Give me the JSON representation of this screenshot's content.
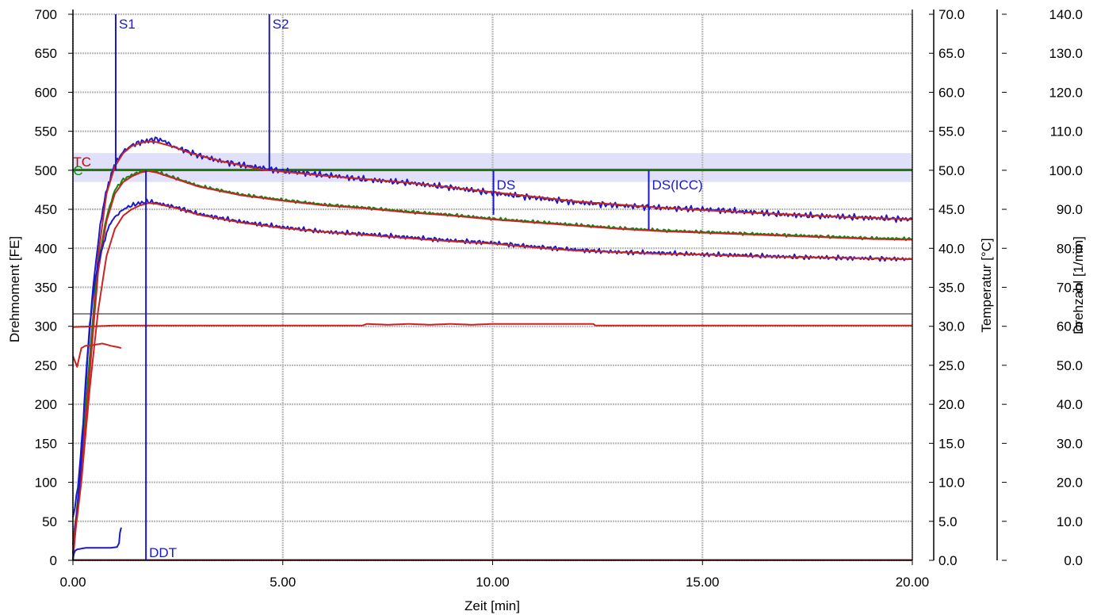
{
  "chart_data": {
    "type": "line",
    "title": "",
    "xlabel": "Zeit [min]",
    "ylabel": "Drehmoment [FE]",
    "y2label": "Temperatur [°C]",
    "y3label": "Drehzahl [1/min]",
    "xlim": [
      0,
      20
    ],
    "ylim": [
      0,
      700
    ],
    "y2lim": [
      0,
      70
    ],
    "y3lim": [
      0,
      140
    ],
    "grid": true,
    "x_ticks": [
      "0.00",
      "5.00",
      "10.00",
      "15.00",
      "20.00"
    ],
    "y_ticks": [
      "0",
      "50",
      "100",
      "150",
      "200",
      "250",
      "300",
      "350",
      "400",
      "450",
      "500",
      "550",
      "600",
      "650",
      "700"
    ],
    "y2_ticks": [
      "0.0",
      "5.0",
      "10.0",
      "15.0",
      "20.0",
      "25.0",
      "30.0",
      "35.0",
      "40.0",
      "45.0",
      "50.0",
      "55.0",
      "60.0",
      "65.0",
      "70.0"
    ],
    "y3_ticks": [
      "0.0",
      "10.0",
      "20.0",
      "30.0",
      "40.0",
      "50.0",
      "60.0",
      "70.0",
      "80.0",
      "90.0",
      "100.0",
      "110.0",
      "120.0",
      "130.0",
      "140.0"
    ],
    "band": {
      "ymin": 485,
      "ymax": 522,
      "color": "#e0e0f8"
    },
    "hlines": [
      {
        "y": 500,
        "color": "#cc0000"
      },
      {
        "y": 501,
        "color": "#118811"
      },
      {
        "y": 316,
        "color": "#444444"
      }
    ],
    "markers": [
      {
        "label": "S1",
        "x": 1.02,
        "ymin": 500,
        "ymax": 700,
        "label_pos": "top",
        "color": "#1a1acc"
      },
      {
        "label": "S2",
        "x": 4.68,
        "ymin": 500,
        "ymax": 700,
        "label_pos": "top",
        "color": "#1a1acc"
      },
      {
        "label": "DS",
        "x": 10.02,
        "ymin": 443,
        "ymax": 500,
        "label_pos": "right",
        "color": "#1a1acc"
      },
      {
        "label": "DS(ICC)",
        "x": 13.72,
        "ymin": 424,
        "ymax": 500,
        "label_pos": "right",
        "color": "#1a1acc"
      },
      {
        "label": "DDT",
        "x": 1.74,
        "ymin": 0,
        "ymax": 500,
        "label_pos": "bottom",
        "color": "#1a1acc"
      }
    ],
    "text_labels": [
      {
        "text": "TC",
        "x": 0.12,
        "y": 512,
        "color": "#cc0000"
      },
      {
        "text": "C",
        "x": 0.12,
        "y": 501,
        "color": "#118811"
      }
    ],
    "series": [
      {
        "color": "#1a1acc",
        "noise": 4,
        "x": [
          0,
          0.05,
          0.15,
          0.25,
          0.35,
          0.45,
          0.55,
          0.65,
          0.75,
          0.85,
          0.95,
          1.05,
          1.2,
          1.4,
          1.6,
          1.8,
          2.0,
          2.2,
          2.4,
          2.6,
          3.0,
          3.5,
          4.0,
          4.5,
          5.0,
          6.0,
          7.0,
          8.0,
          9.0,
          10.0,
          11.0,
          12.0,
          13.0,
          14.0,
          15.0,
          16.0,
          17.0,
          18.0,
          19.0,
          20.0
        ],
        "y": [
          55,
          70,
          110,
          180,
          260,
          330,
          385,
          430,
          460,
          485,
          500,
          512,
          524,
          532,
          536,
          538,
          540,
          537,
          530,
          527,
          519,
          512,
          507,
          503,
          499,
          494,
          488,
          484,
          478,
          471,
          465,
          459,
          455,
          452,
          450,
          447,
          443,
          441,
          439,
          437
        ]
      },
      {
        "color": "#cc2222",
        "noise": 0,
        "x": [
          0,
          0.2,
          0.4,
          0.6,
          0.8,
          1.0,
          1.2,
          1.4,
          1.6,
          1.8,
          2.0,
          2.4,
          2.8,
          3.5,
          4.5,
          6.0,
          8.0,
          10.0,
          12.0,
          14.0,
          16.0,
          18.0,
          20.0
        ],
        "y": [
          0,
          120,
          260,
          390,
          470,
          505,
          522,
          531,
          535,
          537,
          536,
          530,
          522,
          512,
          501,
          493,
          484,
          472,
          460,
          452,
          446,
          441,
          437
        ]
      },
      {
        "color": "#118811",
        "noise": 2,
        "x": [
          0,
          0.2,
          0.4,
          0.6,
          0.8,
          1.0,
          1.2,
          1.4,
          1.6,
          1.8,
          2.0,
          2.5,
          3.0,
          4.0,
          5.0,
          6.0,
          7.0,
          8.0,
          9.0,
          10.0,
          11.0,
          12.0,
          13.0,
          14.0,
          15.0,
          16.0,
          17.0,
          18.0,
          19.0,
          20.0
        ],
        "y": [
          20,
          120,
          260,
          380,
          440,
          475,
          488,
          494,
          498,
          500,
          498,
          489,
          480,
          469,
          462,
          456,
          452,
          447,
          443,
          438,
          434,
          430,
          426,
          423,
          421,
          419,
          417,
          415,
          413,
          412
        ]
      },
      {
        "color": "#cc2222",
        "noise": 0,
        "x": [
          0,
          0.2,
          0.4,
          0.6,
          0.8,
          1.0,
          1.2,
          1.4,
          1.6,
          1.8,
          2.0,
          2.5,
          3.0,
          4.0,
          5.0,
          6.0,
          7.0,
          8.0,
          9.0,
          10.0,
          11.0,
          12.0,
          13.0,
          14.0,
          15.0,
          16.0,
          17.0,
          18.0,
          19.0,
          20.0
        ],
        "y": [
          20,
          110,
          240,
          370,
          435,
          470,
          485,
          492,
          497,
          499,
          497,
          488,
          479,
          468,
          461,
          455,
          451,
          446,
          442,
          437,
          433,
          429,
          425,
          422,
          420,
          418,
          416,
          414,
          412,
          411
        ]
      },
      {
        "color": "#1a1acc",
        "noise": 3,
        "x": [
          0,
          0.1,
          0.2,
          0.3,
          0.4,
          0.5,
          0.6,
          0.7,
          0.8,
          0.9,
          1.0,
          1.2,
          1.4,
          1.6,
          1.8,
          2.0,
          2.5,
          3.0,
          4.0,
          5.0,
          6.0,
          7.0,
          8.0,
          9.0,
          10.0,
          11.0,
          12.0,
          13.0,
          14.0,
          15.0,
          16.0,
          17.0,
          18.0,
          19.0,
          20.0
        ],
        "y": [
          10,
          60,
          130,
          230,
          300,
          350,
          380,
          400,
          420,
          432,
          440,
          450,
          455,
          458,
          460,
          458,
          452,
          444,
          434,
          427,
          421,
          418,
          414,
          410,
          407,
          402,
          398,
          395,
          394,
          392,
          391,
          389,
          388,
          387,
          386
        ]
      },
      {
        "color": "#cc2222",
        "noise": 0,
        "x": [
          0,
          0.2,
          0.4,
          0.6,
          0.8,
          1.0,
          1.2,
          1.4,
          1.6,
          1.8,
          2.0,
          2.5,
          3.0,
          4.0,
          5.0,
          6.0,
          7.0,
          8.0,
          9.0,
          10.0,
          11.0,
          12.0,
          13.0,
          14.0,
          15.0,
          16.0,
          17.0,
          18.0,
          19.0,
          20.0
        ],
        "y": [
          10,
          100,
          220,
          320,
          390,
          425,
          442,
          450,
          455,
          458,
          457,
          451,
          443,
          433,
          426,
          421,
          417,
          413,
          409,
          406,
          401,
          397,
          395,
          393,
          392,
          390,
          389,
          388,
          387,
          386
        ]
      },
      {
        "color": "#cc2222",
        "noise": 0,
        "x": [
          0,
          0.05,
          0.1,
          0.15,
          0.2,
          0.3,
          0.5,
          0.7,
          0.9,
          1.1,
          1.15
        ],
        "y": [
          262,
          255,
          248,
          260,
          272,
          275,
          276,
          278,
          275,
          273,
          272
        ]
      },
      {
        "color": "#cc2222",
        "noise": 0,
        "x": [
          0,
          0.5,
          1.0,
          3.0,
          5.0,
          6.9,
          7.0,
          7.5,
          8.0,
          8.5,
          9.0,
          9.5,
          10.0,
          11.0,
          12.4,
          12.45,
          15.0,
          20.0
        ],
        "y": [
          299,
          300,
          301,
          301,
          301,
          301,
          303,
          302,
          303,
          302,
          303,
          302,
          303,
          303,
          303,
          301,
          301,
          301
        ]
      },
      {
        "color": "#1a1acc",
        "noise": 0,
        "x": [
          0,
          0.02,
          0.05,
          0.1,
          0.2,
          0.3,
          0.5,
          0.7,
          0.9,
          1.05,
          1.1,
          1.12,
          1.15
        ],
        "y": [
          0,
          8,
          12,
          14,
          15,
          16,
          16,
          16,
          16,
          17,
          22,
          35,
          42
        ]
      },
      {
        "color": "#cc2222",
        "noise": 0,
        "x": [
          0,
          20
        ],
        "y": [
          0.5,
          0.5
        ]
      }
    ]
  }
}
